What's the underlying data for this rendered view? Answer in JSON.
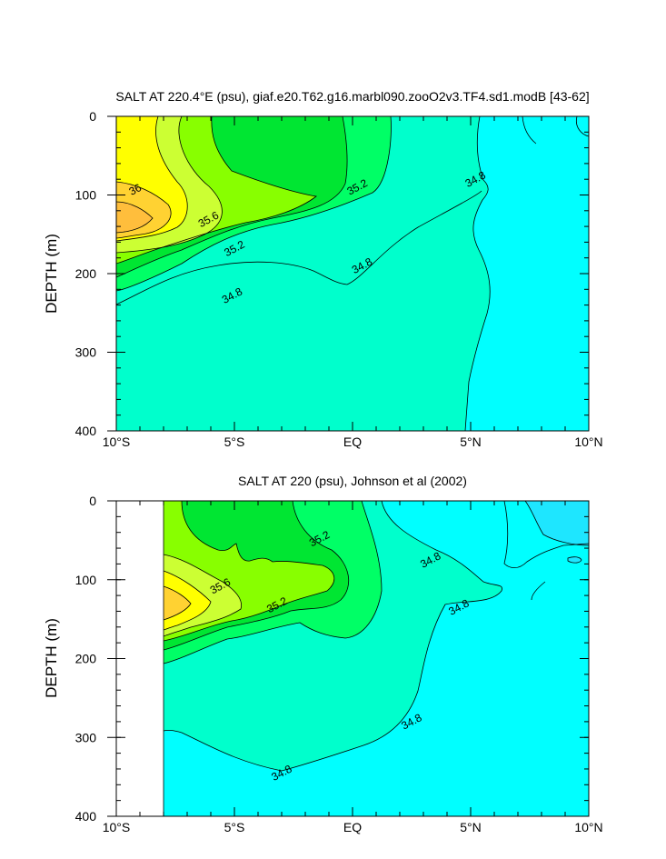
{
  "palette": {
    "c34_4": "#1ee6ff",
    "c34_6": "#00ffff",
    "c34_8": "#00ffcc",
    "c35_0": "#00ff66",
    "c35_2": "#00e632",
    "c35_4": "#88ff00",
    "c35_6": "#ccff33",
    "c35_8": "#ffff00",
    "c36_0": "#ffd232",
    "c36_2": "#ffbe3c",
    "line": "#000000",
    "missing": "#ffffff"
  },
  "chart_data": [
    {
      "type": "contour",
      "title": "SALT AT 220.4°E (psu), giaf.e20.T62.g16.marbl090.zooO2v3.TF4.sd1.modB [43-62]",
      "xlabel": "",
      "ylabel": "DEPTH (m)",
      "xlim": [
        -10,
        10
      ],
      "ylim": [
        400,
        0
      ],
      "xticks": [
        -10,
        -5,
        0,
        5,
        10
      ],
      "xtick_labels": [
        "10°S",
        "5°S",
        "EQ",
        "5°N",
        "10°N"
      ],
      "yticks": [
        0,
        100,
        200,
        300,
        400
      ],
      "ytick_labels": [
        "0",
        "100",
        "200",
        "300",
        "400"
      ],
      "contour_interval": 0.2,
      "contour_labels": [
        {
          "text": "36",
          "x": -9.2,
          "y": 93
        },
        {
          "text": "35.6",
          "x": -6.1,
          "y": 131
        },
        {
          "text": "35.2",
          "x": -5.0,
          "y": 168
        },
        {
          "text": "34.8",
          "x": -5.1,
          "y": 228
        },
        {
          "text": "35.2",
          "x": 0.2,
          "y": 90
        },
        {
          "text": "34.8",
          "x": 0.4,
          "y": 190
        },
        {
          "text": "34.8",
          "x": 5.2,
          "y": 80
        }
      ]
    },
    {
      "type": "contour",
      "title": "SALT AT 220 (psu), Johnson et al (2002)",
      "xlabel": "",
      "ylabel": "DEPTH (m)",
      "xlim": [
        -10,
        10
      ],
      "ylim": [
        400,
        0
      ],
      "data_xlim": [
        -8,
        10
      ],
      "xticks": [
        -10,
        -5,
        0,
        5,
        10
      ],
      "xtick_labels": [
        "10°S",
        "5°S",
        "EQ",
        "5°N",
        "10°N"
      ],
      "yticks": [
        0,
        100,
        200,
        300,
        400
      ],
      "ytick_labels": [
        "0",
        "100",
        "200",
        "300",
        "400"
      ],
      "contour_interval": 0.2,
      "contour_labels": [
        {
          "text": "35.6",
          "x": -5.6,
          "y": 108
        },
        {
          "text": "35.2",
          "x": -3.2,
          "y": 132
        },
        {
          "text": "35.2",
          "x": -1.4,
          "y": 48
        },
        {
          "text": "34.8",
          "x": 3.3,
          "y": 75
        },
        {
          "text": "34.8",
          "x": 4.5,
          "y": 135
        },
        {
          "text": "34.8",
          "x": 2.5,
          "y": 280
        },
        {
          "text": "34.8",
          "x": -3.0,
          "y": 345
        }
      ]
    }
  ]
}
